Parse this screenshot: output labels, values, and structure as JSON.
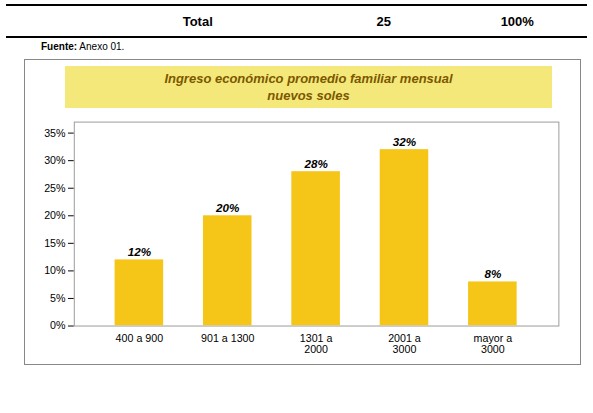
{
  "chart_data": {
    "type": "bar",
    "title": "Ingreso económico promedio familiar mensual",
    "subtitle": "nuevos soles",
    "annotations": [
      "Total",
      "25",
      "100%",
      "Fuente:",
      "Anexo 01."
    ],
    "categories": [
      "400 a 900",
      "901 a 1300",
      "1301 a\n2000",
      "2001 a\n3000",
      "mayor a\n3000"
    ],
    "values": [
      12,
      20,
      28,
      32,
      8
    ],
    "value_labels": [
      "12%",
      "20%",
      "28%",
      "32%",
      "8%"
    ],
    "data_labels": true,
    "color": "#F5C518",
    "ylim": [
      0,
      37
    ],
    "yticks": [
      {
        "value": 0,
        "label": "0%"
      },
      {
        "value": 5,
        "label": "5%"
      },
      {
        "value": 10,
        "label": "10%"
      },
      {
        "value": 15,
        "label": "15%"
      },
      {
        "value": 20,
        "label": "20%"
      },
      {
        "value": 25,
        "label": "25%"
      },
      {
        "value": 30,
        "label": "30%"
      },
      {
        "value": 35,
        "label": "35%"
      }
    ],
    "grid": false
  }
}
